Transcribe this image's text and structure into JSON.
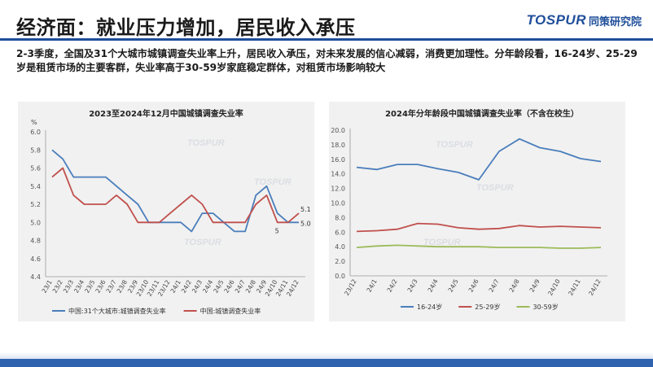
{
  "header": {
    "title": "经济面：就业压力增加，居民收入承压",
    "logo_mark": "TOSPUR",
    "logo_sub": "同策研究院",
    "description": "2-3季度，全国及31个大城市城镇调查失业率上升，居民收入承压，对未来发展的信心减弱，消费更加理性。分年龄段看，16-24岁、25-29岁是租赁市场的主要客群，失业率高于30-59岁家庭稳定群体，对租赁市场影响较大"
  },
  "watermark": "TOSPUR",
  "colors": {
    "accent": "#1f4e9a",
    "blue": "#4a7ebb",
    "red": "#c0504d",
    "green": "#9bbb59",
    "panel": "#f1f1f1"
  },
  "chart_data": [
    {
      "type": "line",
      "title": "2023至2024年12月中国城镇调查失业率",
      "ylabel": "%",
      "ylim": [
        4.4,
        6.0
      ],
      "yticks": [
        "4.4",
        "4.6",
        "4.8",
        "5.0",
        "5.2",
        "5.4",
        "5.6",
        "5.8",
        "6.0"
      ],
      "categories": [
        "23/1",
        "23/2",
        "23/3",
        "23/4",
        "23/5",
        "23/6",
        "23/7",
        "23/8",
        "23/9",
        "23/10",
        "23/11",
        "23/12",
        "24/1",
        "24/2",
        "24/3",
        "24/4",
        "24/5",
        "24/6",
        "24/7",
        "24/8",
        "24/9",
        "24/10",
        "24/11",
        "24/12"
      ],
      "series": [
        {
          "name": "中国:31个大城市:城镇调查失业率",
          "color": "#4a7ebb",
          "values": [
            5.8,
            5.7,
            5.5,
            5.5,
            5.5,
            5.5,
            5.4,
            5.3,
            5.2,
            5.0,
            5.0,
            5.0,
            5.0,
            4.9,
            5.1,
            5.1,
            5.0,
            4.9,
            4.9,
            5.3,
            5.4,
            5.1,
            5.0,
            5.0
          ]
        },
        {
          "name": "中国:城镇调查失业率",
          "color": "#c0504d",
          "values": [
            5.5,
            5.6,
            5.3,
            5.2,
            5.2,
            5.2,
            5.3,
            5.2,
            5.0,
            5.0,
            5.0,
            5.1,
            5.2,
            5.3,
            5.2,
            5.0,
            5.0,
            5.0,
            5.0,
            5.2,
            5.3,
            5.0,
            5.0,
            5.1
          ]
        }
      ],
      "annotations": [
        "5.1",
        "5.0",
        "5"
      ],
      "legend": "bottom"
    },
    {
      "type": "line",
      "title": "2024年分年龄段中国城镇调查失业率（不含在校生）",
      "ylim": [
        0,
        20
      ],
      "yticks": [
        "0.0",
        "2.0",
        "4.0",
        "6.0",
        "8.0",
        "10.0",
        "12.0",
        "14.0",
        "16.0",
        "18.0",
        "20.0"
      ],
      "categories": [
        "23/12",
        "24/1",
        "24/2",
        "24/3",
        "24/4",
        "24/5",
        "24/6",
        "24/7",
        "24/8",
        "24/9",
        "24/10",
        "24/11",
        "24/12"
      ],
      "series": [
        {
          "name": "16-24岁",
          "color": "#4a7ebb",
          "values": [
            14.9,
            14.6,
            15.3,
            15.3,
            14.7,
            14.2,
            13.2,
            17.1,
            18.8,
            17.6,
            17.1,
            16.1,
            15.7
          ]
        },
        {
          "name": "25-29岁",
          "color": "#c0504d",
          "values": [
            6.1,
            6.2,
            6.4,
            7.2,
            7.1,
            6.6,
            6.4,
            6.5,
            6.9,
            6.7,
            6.8,
            6.7,
            6.6
          ]
        },
        {
          "name": "30-59岁",
          "color": "#9bbb59",
          "values": [
            3.9,
            4.1,
            4.2,
            4.1,
            4.0,
            4.0,
            4.0,
            3.9,
            3.9,
            3.9,
            3.8,
            3.8,
            3.9
          ]
        }
      ],
      "legend": "bottom"
    }
  ]
}
